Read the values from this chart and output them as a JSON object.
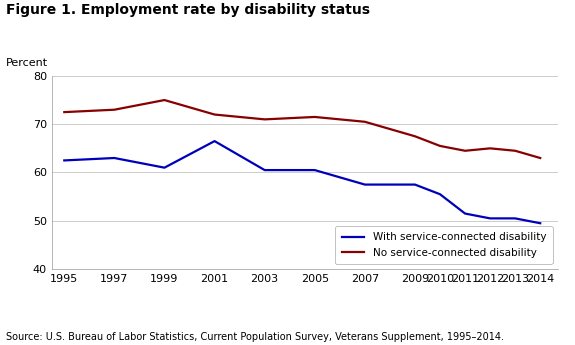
{
  "title": "Figure 1. Employment rate by disability status",
  "ylabel": "Percent",
  "source": "Source: U.S. Bureau of Labor Statistics, Current Population Survey, Veterans Supplement, 1995–2014.",
  "years": [
    1995,
    1997,
    1999,
    2001,
    2003,
    2005,
    2007,
    2009,
    2010,
    2011,
    2012,
    2013,
    2014
  ],
  "with_disability": [
    62.5,
    63.0,
    61.0,
    66.5,
    60.5,
    60.5,
    57.5,
    57.5,
    55.5,
    51.5,
    50.5,
    50.5,
    49.5
  ],
  "no_disability": [
    72.5,
    73.0,
    75.0,
    72.0,
    71.0,
    71.5,
    70.5,
    67.5,
    65.5,
    64.5,
    65.0,
    64.5,
    63.0
  ],
  "with_color": "#0000bb",
  "no_color": "#880000",
  "ylim": [
    40,
    80
  ],
  "yticks": [
    40,
    50,
    60,
    70,
    80
  ],
  "bg_color": "#ffffff",
  "plot_bg_color": "#ffffff",
  "grid_color": "#cccccc",
  "legend_with": "With service-connected disability",
  "legend_no": "No service-connected disability",
  "title_fontsize": 10,
  "label_fontsize": 8,
  "tick_fontsize": 8,
  "source_fontsize": 7
}
